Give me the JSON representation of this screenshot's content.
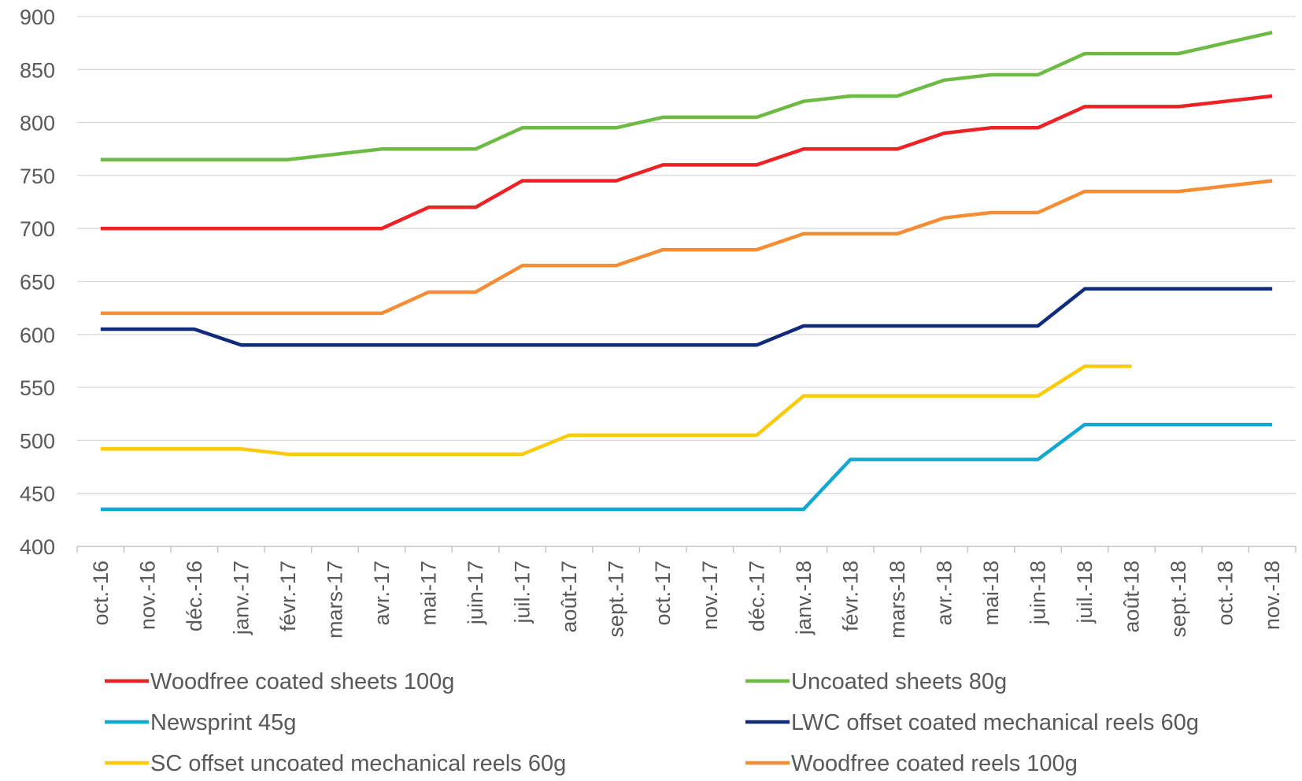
{
  "chart_data": {
    "type": "line",
    "title": "",
    "xlabel": "",
    "ylabel": "",
    "ylim": [
      400,
      900
    ],
    "yticks": [
      400,
      450,
      500,
      550,
      600,
      650,
      700,
      750,
      800,
      850,
      900
    ],
    "grid": true,
    "legend_position": "bottom",
    "categories": [
      "oct.-16",
      "nov.-16",
      "déc.-16",
      "janv.-17",
      "févr.-17",
      "mars-17",
      "avr.-17",
      "mai-17",
      "juin-17",
      "juil.-17",
      "août-17",
      "sept.-17",
      "oct.-17",
      "nov.-17",
      "déc.-17",
      "janv.-18",
      "févr.-18",
      "mars-18",
      "avr.-18",
      "mai-18",
      "juin-18",
      "juil.-18",
      "août-18",
      "sept.-18",
      "oct.-18",
      "nov.-18"
    ],
    "series": [
      {
        "name": "Woodfree coated sheets 100g",
        "color": "#ee2125",
        "values": [
          700,
          700,
          700,
          700,
          700,
          700,
          700,
          720,
          720,
          745,
          745,
          745,
          760,
          760,
          760,
          775,
          775,
          775,
          790,
          795,
          795,
          815,
          815,
          815,
          820,
          825
        ]
      },
      {
        "name": "Uncoated sheets 80g",
        "color": "#6dbb45",
        "values": [
          765,
          765,
          765,
          765,
          765,
          770,
          775,
          775,
          775,
          795,
          795,
          795,
          805,
          805,
          805,
          820,
          825,
          825,
          840,
          845,
          845,
          865,
          865,
          865,
          875,
          885
        ]
      },
      {
        "name": "Newsprint 45g",
        "color": "#13a8cf",
        "values": [
          435,
          435,
          435,
          435,
          435,
          435,
          435,
          435,
          435,
          435,
          435,
          435,
          435,
          435,
          435,
          435,
          482,
          482,
          482,
          482,
          482,
          515,
          515,
          515,
          515,
          515
        ]
      },
      {
        "name": "LWC offset coated mechanical reels 60g",
        "color": "#0f2b7a",
        "values": [
          605,
          605,
          605,
          590,
          590,
          590,
          590,
          590,
          590,
          590,
          590,
          590,
          590,
          590,
          590,
          608,
          608,
          608,
          608,
          608,
          608,
          643,
          643,
          643,
          643,
          643
        ]
      },
      {
        "name": "SC offset uncoated mechanical reels 60g",
        "color": "#fbcb0a",
        "values": [
          492,
          492,
          492,
          492,
          487,
          487,
          487,
          487,
          487,
          487,
          505,
          505,
          505,
          505,
          505,
          542,
          542,
          542,
          542,
          542,
          542,
          570,
          570,
          null,
          null,
          null
        ]
      },
      {
        "name": "Woodfree coated reels 100g",
        "color": "#f58d35",
        "values": [
          620,
          620,
          620,
          620,
          620,
          620,
          620,
          640,
          640,
          665,
          665,
          665,
          680,
          680,
          680,
          695,
          695,
          695,
          710,
          715,
          715,
          735,
          735,
          735,
          740,
          745
        ]
      }
    ]
  }
}
